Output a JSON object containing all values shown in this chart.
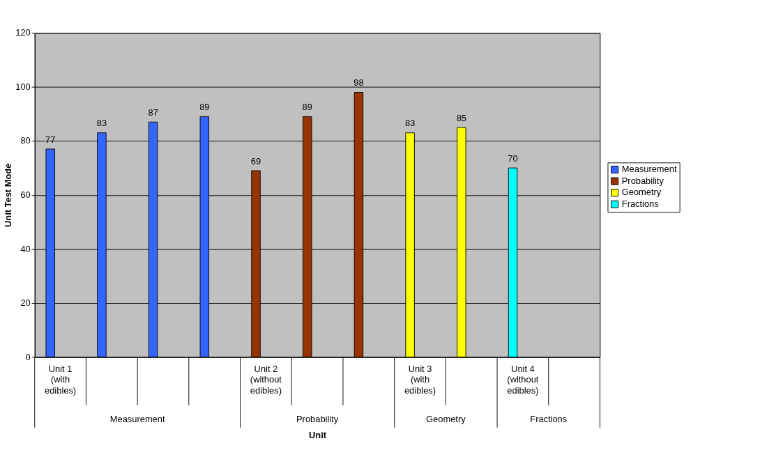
{
  "chart_data": {
    "type": "bar",
    "xlabel": "Unit",
    "ylabel": "Unit Test Mode",
    "categories": [
      "Unit 1 (with edibles)",
      null,
      null,
      null,
      "Unit 2 (without edibles)",
      null,
      null,
      "Unit 3 (with edibles)",
      null,
      "Unit 4 (without edibles)",
      null
    ],
    "series": [
      {
        "name": "Measurement",
        "color": "#3366ff",
        "values": [
          77,
          83,
          87,
          89,
          null,
          null,
          null,
          null,
          null,
          null,
          null
        ]
      },
      {
        "name": "Probability",
        "color": "#993300",
        "values": [
          null,
          null,
          null,
          null,
          69,
          89,
          98,
          null,
          null,
          null,
          null
        ]
      },
      {
        "name": "Geometry",
        "color": "#ffff00",
        "values": [
          null,
          null,
          null,
          null,
          null,
          null,
          null,
          83,
          85,
          null,
          null
        ]
      },
      {
        "name": "Fractions",
        "color": "#00ffff",
        "values": [
          null,
          null,
          null,
          null,
          null,
          null,
          null,
          null,
          null,
          70,
          null
        ]
      }
    ],
    "annotations": [
      "Measurement",
      "Probability",
      "Geometry",
      "Fractions"
    ],
    "ylim": [
      0,
      120
    ],
    "yticks": [
      0,
      20,
      40,
      60,
      80,
      100,
      120
    ],
    "grid": "y",
    "legend": "right",
    "data_labels": true
  }
}
